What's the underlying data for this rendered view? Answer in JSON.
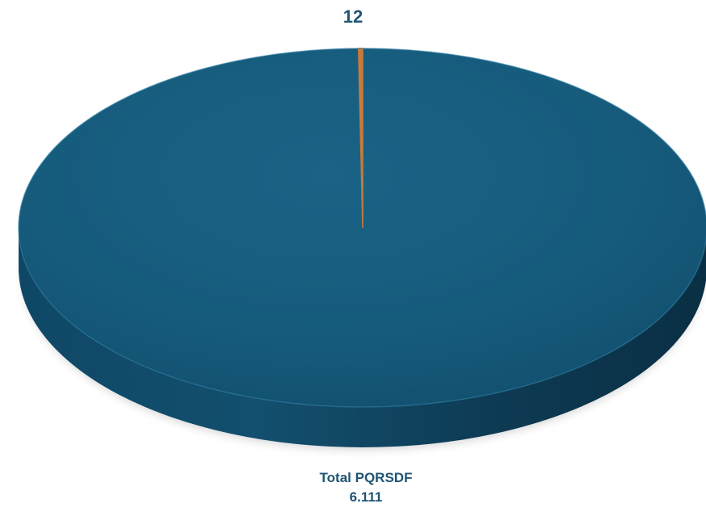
{
  "chart_data": {
    "type": "pie",
    "style": "3d",
    "slices": [
      {
        "label": "Total PQRSDF",
        "value": 6111,
        "value_label": "6.111",
        "color": "#145a7a"
      },
      {
        "label": "",
        "value": 12,
        "value_label": "12",
        "color": "#c87a3a"
      }
    ],
    "title": "",
    "legend": "none"
  }
}
